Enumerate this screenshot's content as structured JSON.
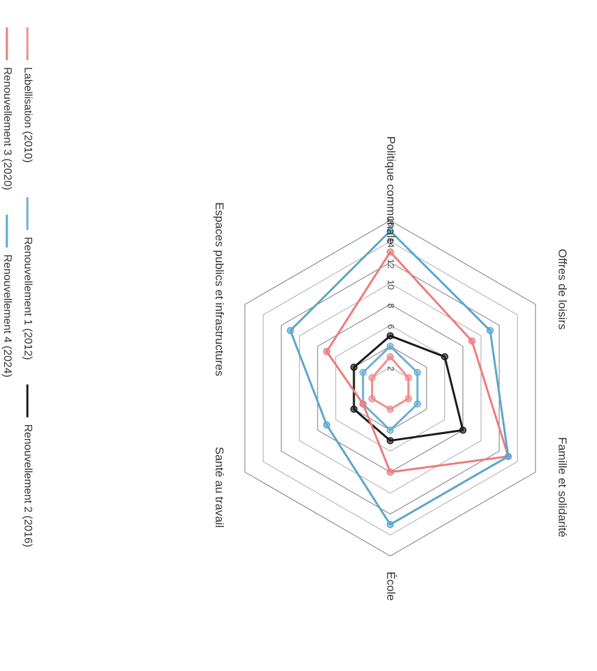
{
  "chart_data": {
    "type": "radar",
    "title": "",
    "axes": [
      "Politique communale",
      "Offres de loisirs",
      "Famille et solidarité",
      "École",
      "Santé au travail",
      "Espaces publics et infrastructures"
    ],
    "rlim": [
      0,
      16
    ],
    "ticks": [
      2,
      4,
      6,
      8,
      10,
      12,
      14,
      16
    ],
    "tick_labels": [
      "2",
      "4",
      "6",
      "8",
      "10",
      "12",
      "14",
      "16"
    ],
    "grid": true,
    "legend_position": "bottom",
    "series": [
      {
        "name": "Labellisation (2010)",
        "color": "#f28b8b",
        "values": [
          3,
          2,
          2,
          2,
          2,
          2
        ]
      },
      {
        "name": "Renouvellement 1 (2012)",
        "color": "#6eaed3",
        "values": [
          4,
          3,
          3,
          4,
          3,
          3
        ]
      },
      {
        "name": "Renouvellement 2 (2016)",
        "color": "#1a1a1a",
        "values": [
          5,
          6,
          8,
          5,
          4,
          4
        ]
      },
      {
        "name": "Renouvellement 3 (2020)",
        "color": "#f07a7a",
        "values": [
          13,
          9,
          13,
          8,
          3,
          7
        ]
      },
      {
        "name": "Renouvellement 4 (2024)",
        "color": "#5aa6cf",
        "values": [
          15,
          11,
          13,
          13,
          7,
          11
        ]
      }
    ]
  }
}
